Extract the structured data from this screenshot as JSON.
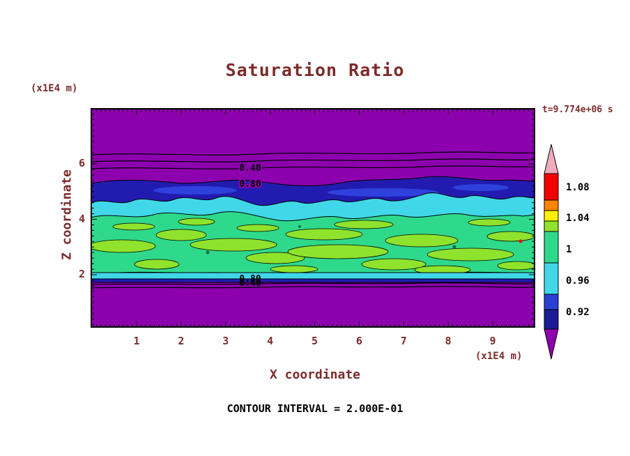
{
  "title": "Saturation Ratio",
  "timestamp": "t=9.774e+06 s",
  "footer": "CONTOUR INTERVAL = 2.000E-01",
  "axes": {
    "x_label": "X coordinate",
    "x_unit": "(x1E4 m)",
    "y_label": "Z coordinate",
    "y_unit": "(x1E4 m)",
    "x_ticks": [
      "1",
      "2",
      "3",
      "4",
      "5",
      "6",
      "7",
      "8",
      "9"
    ],
    "y_ticks": [
      "2",
      "4",
      "6"
    ]
  },
  "contour_labels": {
    "upper": [
      "0.40",
      "0.80"
    ],
    "lower": [
      "0.80",
      "0.40"
    ]
  },
  "colorbar": {
    "labels": [
      "1.08",
      "1.04",
      "1",
      "0.96",
      "0.92"
    ],
    "arrow_top_color": "#f2aabe",
    "arrow_bottom_color": "#8d00ae",
    "block_colors": [
      "#f20000",
      "#ff8400",
      "#fef200",
      "#8fe32c",
      "#2fd98c",
      "#40d8e8",
      "#2a3fd4",
      "#1d1a96"
    ]
  },
  "colors": {
    "purple": "#8d00ae",
    "navy": "#221bb0",
    "blue": "#2e41dd",
    "cyan": "#40d8e8",
    "green": "#2fd98c",
    "chartreuse": "#8fe32c",
    "red": "#f20000",
    "dark_speck": "#0a6b3c",
    "text_dark_red": "#7d2b2b",
    "black": "#000000"
  },
  "chart_data": {
    "type": "heatmap",
    "title": "Saturation Ratio",
    "xlabel": "X coordinate (x1E4 m)",
    "ylabel": "Z coordinate (x1E4 m)",
    "xlim": [
      0,
      10
    ],
    "ylim": [
      0,
      8
    ],
    "time": "t=9.774e+06 s",
    "contour_interval": 0.2,
    "colorbar_ticks": [
      1.08,
      1.04,
      1,
      0.96,
      0.92
    ],
    "colorbar_levels_low_to_high": [
      "<0.92 purple",
      "0.92-0.94 navy",
      "0.94-0.96 blue",
      "0.96-0.98 cyan",
      "0.98-1.00 green",
      "1.00-1.02 chartreuse",
      "1.02-1.04 yellow",
      "1.04-1.06 orange",
      "1.06-1.08 red",
      ">1.08 pink"
    ],
    "bands_top_to_bottom": [
      {
        "z_from": 5.4,
        "z_to": 8.0,
        "value": "< 0.92",
        "color": "purple"
      },
      {
        "z_from": 4.6,
        "z_to": 5.4,
        "value": "0.92 - 0.96",
        "color": "navy with blue streaks"
      },
      {
        "z_from": 4.2,
        "z_to": 4.8,
        "value": "0.96 - 0.98",
        "color": "cyan"
      },
      {
        "z_from": 2.1,
        "z_to": 4.3,
        "value": "0.98 - 1.00 with 1.00-1.02 blobs",
        "color": "green with chartreuse blobs"
      },
      {
        "z_from": 1.9,
        "z_to": 2.1,
        "value": "0.92 - 0.98 thin transition strips",
        "color": "cyan over navy"
      },
      {
        "z_from": 0.0,
        "z_to": 1.9,
        "value": "< 0.92",
        "color": "purple"
      }
    ],
    "line_contour_labels": [
      {
        "value": "0.40",
        "z": 5.9
      },
      {
        "value": "0.80",
        "z": 5.3
      },
      {
        "value": "0.80",
        "z": 2.05
      },
      {
        "value": "0.40",
        "z": 1.9
      }
    ]
  }
}
